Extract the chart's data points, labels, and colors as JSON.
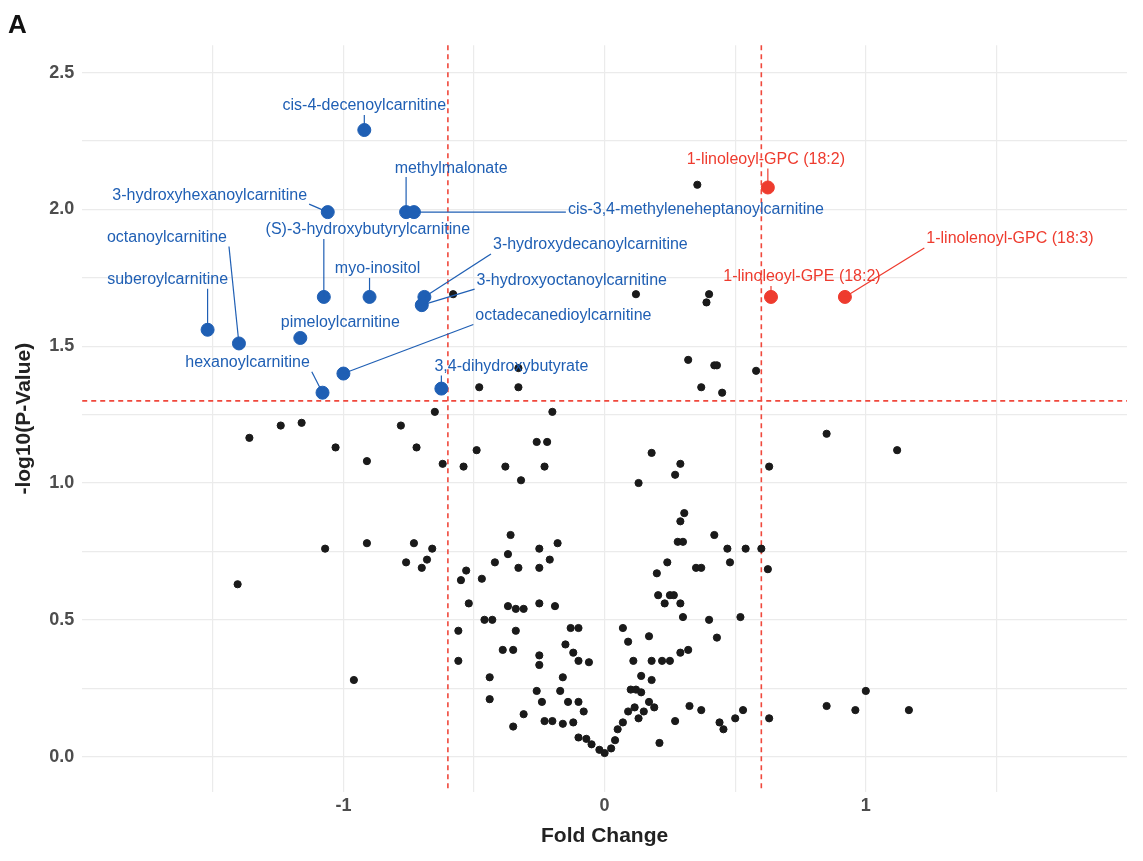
{
  "chart_data": {
    "type": "scatter",
    "title": "A",
    "xlabel": "Fold Change",
    "ylabel": "-log10(P-Value)",
    "xlim": [
      -2,
      2
    ],
    "ylim": [
      -0.13,
      2.6
    ],
    "xticks": [
      {
        "value": -1.5,
        "label": null
      },
      -1,
      {
        "value": -0.5,
        "label": null
      },
      0,
      {
        "value": 0.5,
        "label": null
      },
      1,
      {
        "value": 1.5,
        "label": null
      }
    ],
    "yticks": [
      {
        "value": 0,
        "label": "0.0"
      },
      {
        "value": 0.25,
        "label": null
      },
      0.5,
      {
        "value": 0.75,
        "label": null
      },
      {
        "value": 1,
        "label": "1.0"
      },
      {
        "value": 1.25,
        "label": null
      },
      1.5,
      {
        "value": 1.75,
        "label": null
      },
      {
        "value": 2,
        "label": "2.0"
      },
      {
        "value": 2.25,
        "label": null
      },
      2.5
    ],
    "grid": true,
    "legend": false,
    "marker": "circle",
    "ref_lines": [
      {
        "axis": "x",
        "value": -0.6,
        "color": "#f0483c",
        "line_style": "dashed"
      },
      {
        "axis": "x",
        "value": 0.6,
        "color": "#f0483c",
        "line_style": "dashed"
      },
      {
        "axis": "y",
        "value": 1.3,
        "color": "#f0483c",
        "line_style": "dashed"
      }
    ],
    "series": [
      {
        "color": "#1a1a1a",
        "x": [
          0.355,
          -0.58,
          0.12,
          0.4,
          0.39,
          0.32,
          0.42,
          0.43,
          0.58,
          -0.33,
          -0.48,
          -0.33,
          0.37,
          0.45,
          -0.65,
          -0.2,
          -1.36,
          -1.24,
          -1.16,
          -0.78,
          -1.03,
          -0.72,
          -0.91,
          -0.62,
          -0.54,
          -0.49,
          -0.38,
          -0.32,
          -0.26,
          -0.22,
          -0.23,
          0.18,
          0.13,
          0.27,
          0.29,
          0.63,
          0.85,
          1.12,
          -1.405,
          -1.07,
          -0.91,
          -0.96,
          -0.73,
          -0.76,
          -0.7,
          -0.68,
          -0.66,
          -0.53,
          -0.55,
          -0.56,
          -0.56,
          -0.52,
          -0.47,
          -0.46,
          -0.43,
          -0.42,
          -0.36,
          -0.37,
          -0.33,
          -0.37,
          -0.34,
          -0.31,
          -0.34,
          -0.39,
          -0.35,
          -0.25,
          -0.25,
          -0.21,
          -0.18,
          -0.25,
          -0.19,
          -0.44,
          -0.44,
          -0.35,
          -0.31,
          -0.25,
          -0.25,
          -0.26,
          -0.24,
          -0.23,
          -0.2,
          -0.16,
          -0.15,
          -0.13,
          -0.1,
          -0.12,
          -0.1,
          -0.06,
          -0.16,
          -0.17,
          -0.14,
          -0.1,
          -0.08,
          -0.12,
          -0.1,
          -0.07,
          -0.05,
          -0.02,
          0.0,
          0.025,
          0.04,
          0.05,
          0.07,
          0.09,
          0.115,
          0.13,
          0.15,
          0.17,
          0.19,
          0.21,
          0.1,
          0.12,
          0.14,
          0.14,
          0.18,
          0.07,
          0.09,
          0.11,
          0.17,
          0.18,
          0.22,
          0.25,
          0.2,
          0.24,
          0.205,
          0.25,
          0.265,
          0.23,
          0.29,
          0.3,
          0.28,
          0.3,
          0.29,
          0.305,
          0.35,
          0.37,
          0.29,
          0.32,
          0.4,
          0.43,
          0.42,
          0.47,
          0.48,
          0.52,
          0.54,
          0.6,
          0.625,
          0.325,
          0.37,
          0.27,
          0.455,
          0.44,
          0.5,
          0.53,
          0.63,
          0.85,
          0.96,
          1.0,
          1.165
        ],
        "values": [
          2.09,
          1.69,
          1.69,
          1.69,
          1.66,
          1.45,
          1.43,
          1.43,
          1.41,
          1.42,
          1.35,
          1.35,
          1.35,
          1.33,
          1.26,
          1.26,
          1.165,
          1.21,
          1.22,
          1.21,
          1.13,
          1.13,
          1.08,
          1.07,
          1.06,
          1.12,
          1.06,
          1.01,
          1.15,
          1.15,
          1.06,
          1.11,
          1.0,
          1.03,
          1.07,
          1.06,
          1.18,
          1.12,
          0.63,
          0.76,
          0.78,
          0.28,
          0.78,
          0.71,
          0.69,
          0.72,
          0.76,
          0.68,
          0.645,
          0.46,
          0.35,
          0.56,
          0.65,
          0.5,
          0.5,
          0.71,
          0.81,
          0.74,
          0.69,
          0.55,
          0.54,
          0.54,
          0.46,
          0.39,
          0.39,
          0.76,
          0.69,
          0.72,
          0.78,
          0.56,
          0.55,
          0.29,
          0.21,
          0.11,
          0.155,
          0.335,
          0.37,
          0.24,
          0.2,
          0.13,
          0.13,
          0.12,
          0.41,
          0.47,
          0.47,
          0.38,
          0.35,
          0.345,
          0.29,
          0.24,
          0.2,
          0.2,
          0.165,
          0.125,
          0.07,
          0.065,
          0.045,
          0.025,
          0.013,
          0.03,
          0.06,
          0.1,
          0.125,
          0.165,
          0.18,
          0.14,
          0.165,
          0.2,
          0.18,
          0.05,
          0.245,
          0.245,
          0.235,
          0.295,
          0.28,
          0.47,
          0.42,
          0.35,
          0.44,
          0.35,
          0.35,
          0.35,
          0.67,
          0.71,
          0.59,
          0.59,
          0.59,
          0.56,
          0.56,
          0.51,
          0.785,
          0.785,
          0.86,
          0.89,
          0.69,
          0.69,
          0.38,
          0.39,
          0.5,
          0.435,
          0.81,
          0.76,
          0.71,
          0.51,
          0.76,
          0.76,
          0.685,
          0.185,
          0.17,
          0.13,
          0.1,
          0.125,
          0.14,
          0.17,
          0.14,
          0.185,
          0.17,
          0.24,
          0.17
        ]
      },
      {
        "color": "#1f5fb4",
        "x": [
          -0.92,
          -1.06,
          -0.76,
          -0.73,
          -1.075,
          -0.9,
          -0.69,
          -0.7,
          -1.52,
          -1.4,
          -1.165,
          -1.0,
          -0.625,
          -1.08
        ],
        "values": [
          2.29,
          1.99,
          1.99,
          1.99,
          1.68,
          1.68,
          1.68,
          1.65,
          1.56,
          1.51,
          1.53,
          1.4,
          1.345,
          1.33
        ]
      },
      {
        "color": "#ee3b2e",
        "x": [
          0.625,
          0.637,
          0.92
        ],
        "values": [
          2.08,
          1.68,
          1.68
        ]
      }
    ],
    "annotations": [
      {
        "text": "cis-4-decenoylcarnitine",
        "x": -0.92,
        "y": 2.29
      },
      {
        "text": "3-hydroxyhexanoylcarnitine",
        "x": -1.06,
        "y": 1.99
      },
      {
        "text": "methylmalonate",
        "x": -0.76,
        "y": 1.99
      },
      {
        "text": "cis-3,4-methyleneheptanoylcarnitine",
        "x": -0.73,
        "y": 1.99
      },
      {
        "text": "(S)-3-hydroxybutyrylcarnitine",
        "x": -1.075,
        "y": 1.68
      },
      {
        "text": "myo-inositol",
        "x": -0.9,
        "y": 1.68
      },
      {
        "text": "3-hydroxydecanoylcarnitine",
        "x": -0.69,
        "y": 1.68
      },
      {
        "text": "3-hydroxyoctanoylcarnitine",
        "x": -0.7,
        "y": 1.65
      },
      {
        "text": "suberoylcarnitine",
        "x": -1.52,
        "y": 1.56
      },
      {
        "text": "octanoylcarnitine",
        "x": -1.4,
        "y": 1.51
      },
      {
        "text": "pimeloylcarnitine",
        "x": -1.165,
        "y": 1.53
      },
      {
        "text": "octadecanedioylcarnitine",
        "x": -1.0,
        "y": 1.4
      },
      {
        "text": "3,4-dihydroxybutyrate",
        "x": -0.625,
        "y": 1.345
      },
      {
        "text": "hexanoylcarnitine",
        "x": -1.08,
        "y": 1.33
      },
      {
        "text": "1-linoleoyl-GPC (18:2)",
        "x": 0.625,
        "y": 2.08
      },
      {
        "text": "1-linoleoyl-GPE (18:2)",
        "x": 0.637,
        "y": 1.68
      },
      {
        "text": "1-linolenoyl-GPC (18:3)",
        "x": 0.92,
        "y": 1.68
      }
    ]
  }
}
